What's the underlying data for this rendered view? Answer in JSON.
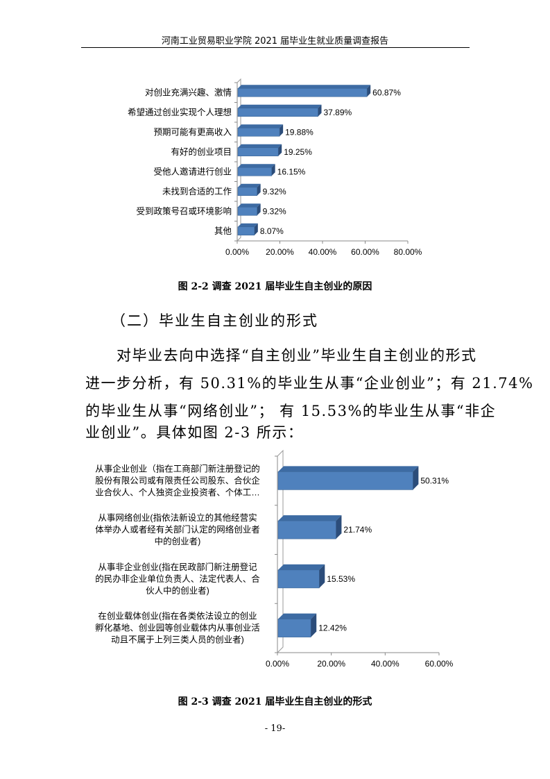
{
  "header": {
    "title": "河南工业贸易职业学院 2021 届毕业生就业质量调查报告"
  },
  "section_heading": "（二）毕业生自主创业的形式",
  "paragraph": [
    "对毕业去向中选择“自主创业”毕业生自主创业的形式",
    "进一步分析，有 50.31%的毕业生从事“企业创业”；有 21.74%",
    "的毕业生从事“网络创业”； 有 15.53%的毕业生从事“非企",
    "业创业”。具体如图 2-3 所示："
  ],
  "page_number": "-   19-",
  "chart_data": [
    {
      "type": "bar",
      "orientation": "horizontal",
      "style": "3d",
      "caption": "图 2-2   调查 2021 届毕业生自主创业的原因",
      "categories": [
        "对创业充满兴趣、激情",
        "希望通过创业实现个人理想",
        "预期可能有更高收入",
        "有好的创业项目",
        "受他人邀请进行创业",
        "未找到合适的工作",
        "受到政策号召或环境影响",
        "其他"
      ],
      "values": [
        60.87,
        37.89,
        19.88,
        19.25,
        16.15,
        9.32,
        9.32,
        8.07
      ],
      "data_labels": [
        "60.87%",
        "37.89%",
        "19.88%",
        "19.25%",
        "16.15%",
        "9.32%",
        "9.32%",
        "8.07%"
      ],
      "xlim": [
        0,
        80
      ],
      "xticks": [
        "0.00%",
        "20.00%",
        "40.00%",
        "60.00%",
        "80.00%"
      ],
      "bar_color": "#4f81bd",
      "grid": false
    },
    {
      "type": "bar",
      "orientation": "horizontal",
      "style": "3d",
      "caption": "图 2-3   调查 2021 届毕业生自主创业的形式",
      "categories": [
        [
          "从事企业创业（指在工商部门新注册登记的",
          "股份有限公司或有限责任公司股东、合伙企",
          "业合伙人、个人独资企业投资者、个体工…"
        ],
        [
          "从事网络创业(指依法新设立的其他经营实",
          "体举办人或者经有关部门认定的网络创业者",
          "中的创业者)"
        ],
        [
          "从事非企业创业(指在民政部门新注册登记",
          "的民办非企业单位负责人、法定代表人、合",
          "伙人中的创业者)"
        ],
        [
          "在创业载体创业(指在各类依法设立的创业",
          "孵化基地、创业园等创业载体内从事创业活",
          "动且不属于上列三类人员的创业者)"
        ]
      ],
      "values": [
        50.31,
        21.74,
        15.53,
        12.42
      ],
      "data_labels": [
        "50.31%",
        "21.74%",
        "15.53%",
        "12.42%"
      ],
      "xlim": [
        0,
        60
      ],
      "xticks": [
        "0.00%",
        "20.00%",
        "40.00%",
        "60.00%"
      ],
      "bar_color": "#4f81bd",
      "grid": false
    }
  ]
}
